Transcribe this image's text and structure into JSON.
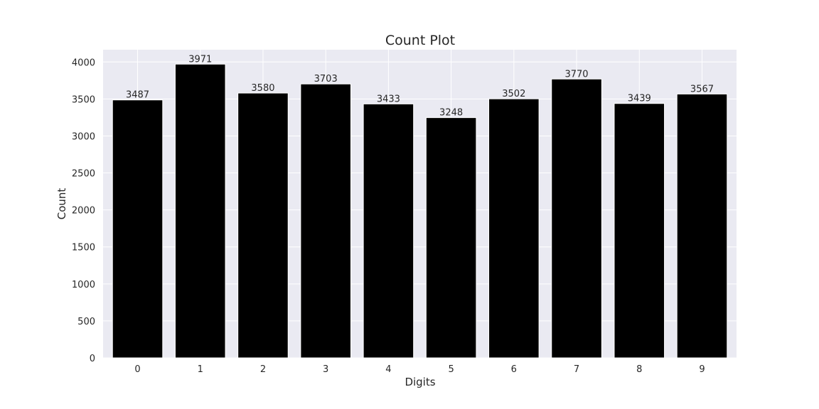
{
  "chart_data": {
    "type": "bar",
    "title": "Count Plot",
    "xlabel": "Digits",
    "ylabel": "Count",
    "categories": [
      "0",
      "1",
      "2",
      "3",
      "4",
      "5",
      "6",
      "7",
      "8",
      "9"
    ],
    "values": [
      3487,
      3971,
      3580,
      3703,
      3433,
      3248,
      3502,
      3770,
      3439,
      3567
    ],
    "ylim": [
      0,
      4166
    ],
    "yticks": [
      0,
      500,
      1000,
      1500,
      2000,
      2500,
      3000,
      3500,
      4000
    ],
    "grid": true,
    "colors": {
      "bar": "#000000",
      "plot_background": "#eaeaf2",
      "grid": "#ffffff"
    }
  }
}
